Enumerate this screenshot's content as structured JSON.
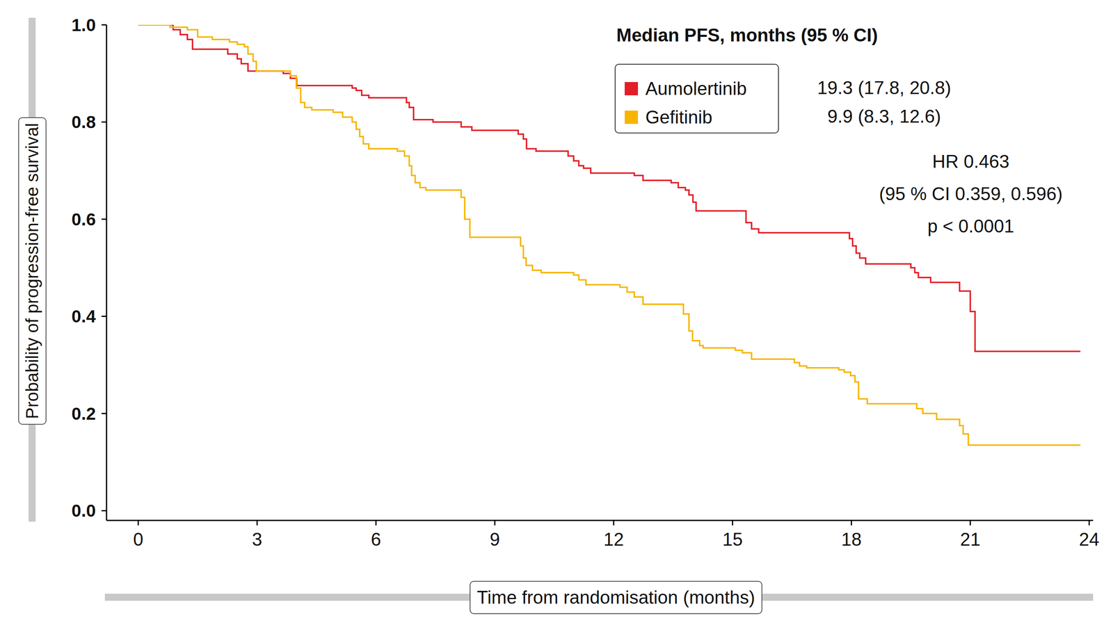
{
  "chart_data": {
    "type": "line",
    "x_label": "Time from randomisation (months)",
    "y_label": "Probability of progression-free survival",
    "legend": "top right",
    "legend_title": "Median PFS, months (95 % CI)",
    "annotations": [
      "HR 0.463",
      "(95 % CI 0.359, 0.596)",
      "p < 0.0001"
    ],
    "xlim": [
      -0.8,
      24.1
    ],
    "xticks": [
      0,
      3,
      6,
      9,
      12,
      15,
      18,
      21,
      24
    ],
    "ylim": [
      -0.02,
      1.0
    ],
    "yticks": [
      {
        "value": 0,
        "label": "0.0"
      },
      0.2,
      0.4,
      0.6,
      0.8,
      {
        "value": 1,
        "label": "1.0"
      }
    ],
    "grid": false,
    "series": [
      {
        "name": "Aumolertinib",
        "color": "#e41e26",
        "line_style": "step",
        "median": "19.3 (17.8, 20.8)",
        "x": [
          0,
          0.88,
          1.06,
          1.24,
          1.37,
          2.26,
          2.5,
          2.6,
          2.77,
          3.66,
          3.84,
          4.0,
          5.4,
          5.5,
          5.64,
          5.82,
          6.77,
          6.84,
          6.95,
          7.44,
          8.15,
          8.42,
          9.59,
          9.72,
          9.8,
          10.04,
          10.85,
          10.99,
          11.12,
          11.24,
          11.42,
          12.52,
          12.74,
          13.45,
          13.63,
          13.81,
          13.9,
          14.0,
          14.08,
          15.34,
          15.48,
          15.66,
          17.95,
          18.03,
          18.12,
          18.21,
          18.36,
          19.5,
          19.6,
          19.69,
          20.0,
          20.73,
          21.0,
          21.12,
          23.78
        ],
        "values": [
          1.0,
          0.99,
          0.98,
          0.97,
          0.95,
          0.94,
          0.93,
          0.92,
          0.905,
          0.9,
          0.89,
          0.875,
          0.87,
          0.865,
          0.855,
          0.85,
          0.84,
          0.83,
          0.805,
          0.8,
          0.79,
          0.783,
          0.775,
          0.765,
          0.745,
          0.74,
          0.73,
          0.72,
          0.71,
          0.705,
          0.695,
          0.69,
          0.68,
          0.675,
          0.665,
          0.66,
          0.65,
          0.635,
          0.617,
          0.593,
          0.58,
          0.572,
          0.56,
          0.545,
          0.53,
          0.52,
          0.508,
          0.5,
          0.49,
          0.48,
          0.47,
          0.452,
          0.41,
          0.328,
          0.328
        ]
      },
      {
        "name": "Gefitinib",
        "color": "#f7b500",
        "line_style": "step",
        "median": "9.9 (8.3, 12.6)",
        "x": [
          0,
          0.8,
          1.24,
          1.5,
          1.87,
          2.3,
          2.5,
          2.68,
          2.77,
          2.9,
          2.98,
          3.84,
          3.99,
          4.1,
          4.2,
          4.38,
          4.92,
          5.16,
          5.4,
          5.5,
          5.59,
          5.68,
          5.82,
          6.54,
          6.72,
          6.84,
          6.9,
          6.99,
          7.11,
          7.26,
          8.15,
          8.24,
          8.37,
          9.65,
          9.72,
          9.79,
          9.95,
          10.17,
          10.99,
          11.12,
          11.3,
          12.16,
          12.34,
          12.52,
          12.74,
          13.76,
          13.9,
          13.99,
          14.17,
          14.26,
          15.07,
          15.25,
          15.48,
          16.56,
          16.69,
          16.87,
          17.68,
          17.82,
          17.98,
          18.09,
          18.18,
          18.4,
          19.65,
          19.8,
          20.15,
          20.73,
          20.82,
          20.95,
          23.78
        ],
        "values": [
          1.0,
          0.995,
          0.99,
          0.975,
          0.97,
          0.965,
          0.96,
          0.955,
          0.94,
          0.925,
          0.905,
          0.895,
          0.87,
          0.84,
          0.83,
          0.825,
          0.82,
          0.81,
          0.8,
          0.785,
          0.77,
          0.755,
          0.745,
          0.74,
          0.73,
          0.71,
          0.69,
          0.675,
          0.665,
          0.66,
          0.645,
          0.6,
          0.563,
          0.545,
          0.52,
          0.505,
          0.495,
          0.49,
          0.485,
          0.475,
          0.465,
          0.46,
          0.45,
          0.44,
          0.425,
          0.405,
          0.37,
          0.35,
          0.34,
          0.335,
          0.33,
          0.325,
          0.312,
          0.305,
          0.298,
          0.294,
          0.29,
          0.285,
          0.278,
          0.265,
          0.23,
          0.22,
          0.21,
          0.2,
          0.188,
          0.175,
          0.158,
          0.135,
          0.135
        ]
      }
    ]
  }
}
